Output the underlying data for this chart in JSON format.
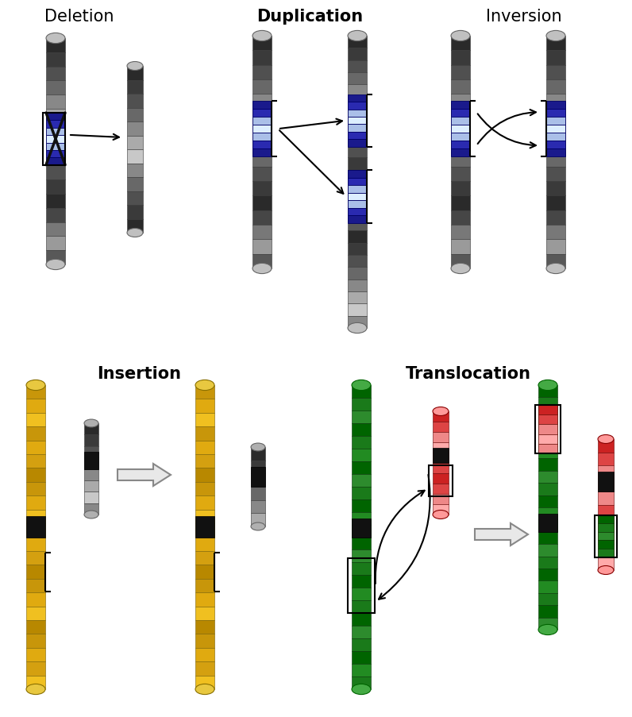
{
  "bg": "#ffffff",
  "labels": {
    "deletion": "Deletion",
    "duplication": "Duplication",
    "inversion": "Inversion",
    "insertion": "Insertion",
    "translocation": "Translocation"
  },
  "gray_bands_dark": [
    "#2a2a2a",
    "#3a3a3a",
    "#505050",
    "#686868",
    "#888888",
    "#aaaaaa",
    "#c8c8c8",
    "#888888",
    "#686868",
    "#505050",
    "#3a3a3a",
    "#2a2a2a",
    "#464646",
    "#787878",
    "#9a9a9a",
    "#585858"
  ],
  "blue_bands": [
    "#1a1a8c",
    "#2a2ab0",
    "#aabfe8",
    "#ddeeff",
    "#aabfe8",
    "#2a2ab0",
    "#1a1a8c"
  ],
  "blue_bands_light": [
    "#3a5acc",
    "#6688dd",
    "#aac8f0",
    "#ffffff",
    "#aac8f0",
    "#6688dd",
    "#3a5acc"
  ],
  "yellow_bands": [
    "#c8960a",
    "#e0aa10",
    "#f0c020",
    "#c8960a",
    "#e0aa10",
    "#d4a010",
    "#b88800",
    "#c8960a",
    "#e0aa10",
    "#f0c020",
    "#c8960a",
    "#e0aa10",
    "#d4a010",
    "#b88800",
    "#c8960a",
    "#e0aa10",
    "#f0c020",
    "#b88800",
    "#c8960a",
    "#e0aa10",
    "#d4a010",
    "#f0c020"
  ],
  "green_bands": [
    "#006400",
    "#1a7a1a",
    "#2d8b2d",
    "#006400",
    "#1a7a1a",
    "#228b22",
    "#006400",
    "#2d8b2d",
    "#1a7a1a",
    "#006400",
    "#228b22",
    "#1a7a1a",
    "#006400",
    "#2d8b2d",
    "#1a7a1a",
    "#006400",
    "#228b22",
    "#1a7a1a",
    "#006400",
    "#2d8b2d",
    "#1a7a1a",
    "#006400",
    "#228b22",
    "#1a7a1a"
  ],
  "red_bands": [
    "#cc2222",
    "#dd4444",
    "#ee8888",
    "#ffaaaa",
    "#ee8888",
    "#dd4444",
    "#cc2222",
    "#dd4444",
    "#ee8888",
    "#ffaaaa"
  ],
  "centromere_color": "#111111"
}
